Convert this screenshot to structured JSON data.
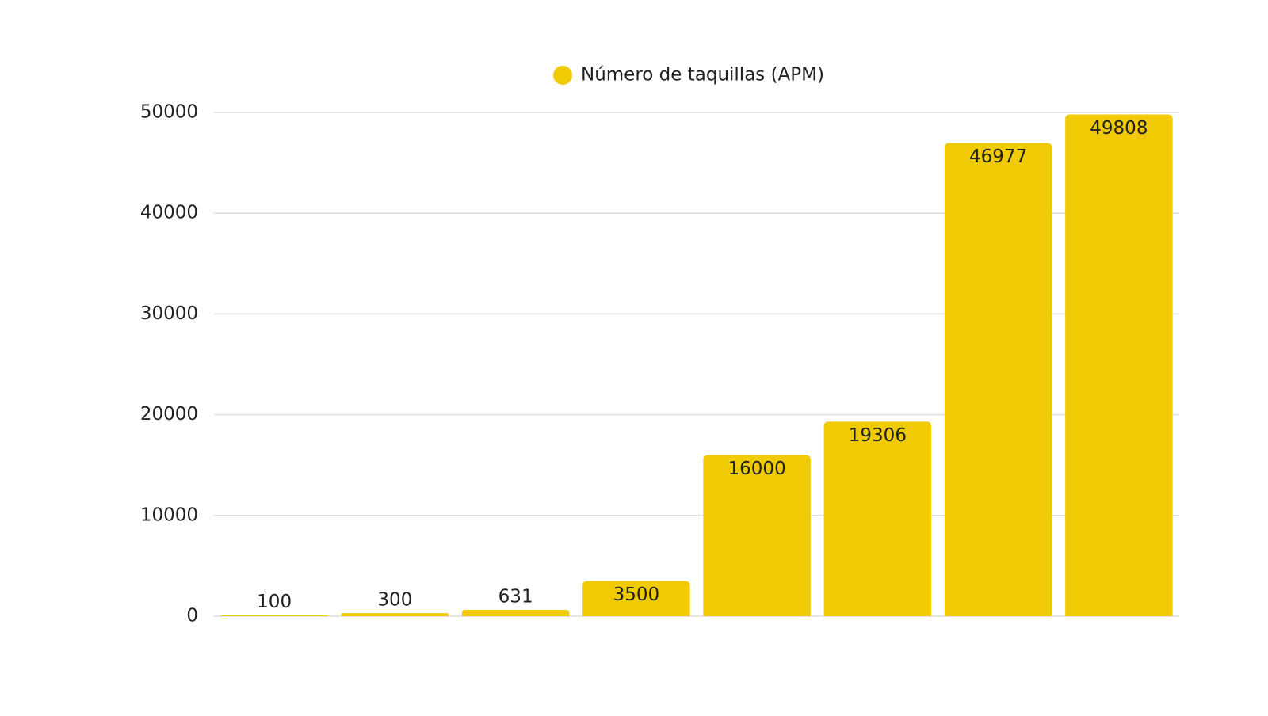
{
  "chart_data": {
    "type": "bar",
    "categories": [
      null,
      null,
      null,
      null,
      null,
      null,
      null,
      null
    ],
    "series": [
      {
        "name": "Número de taquillas (APM)",
        "color": "#f0cb05",
        "values": [
          100,
          300,
          631,
          3500,
          16000,
          19306,
          46977,
          49808
        ]
      }
    ],
    "ylim": [
      0,
      50000
    ],
    "yticks": [
      0,
      10000,
      20000,
      30000,
      40000,
      50000
    ],
    "grid": true,
    "legend": "top"
  }
}
